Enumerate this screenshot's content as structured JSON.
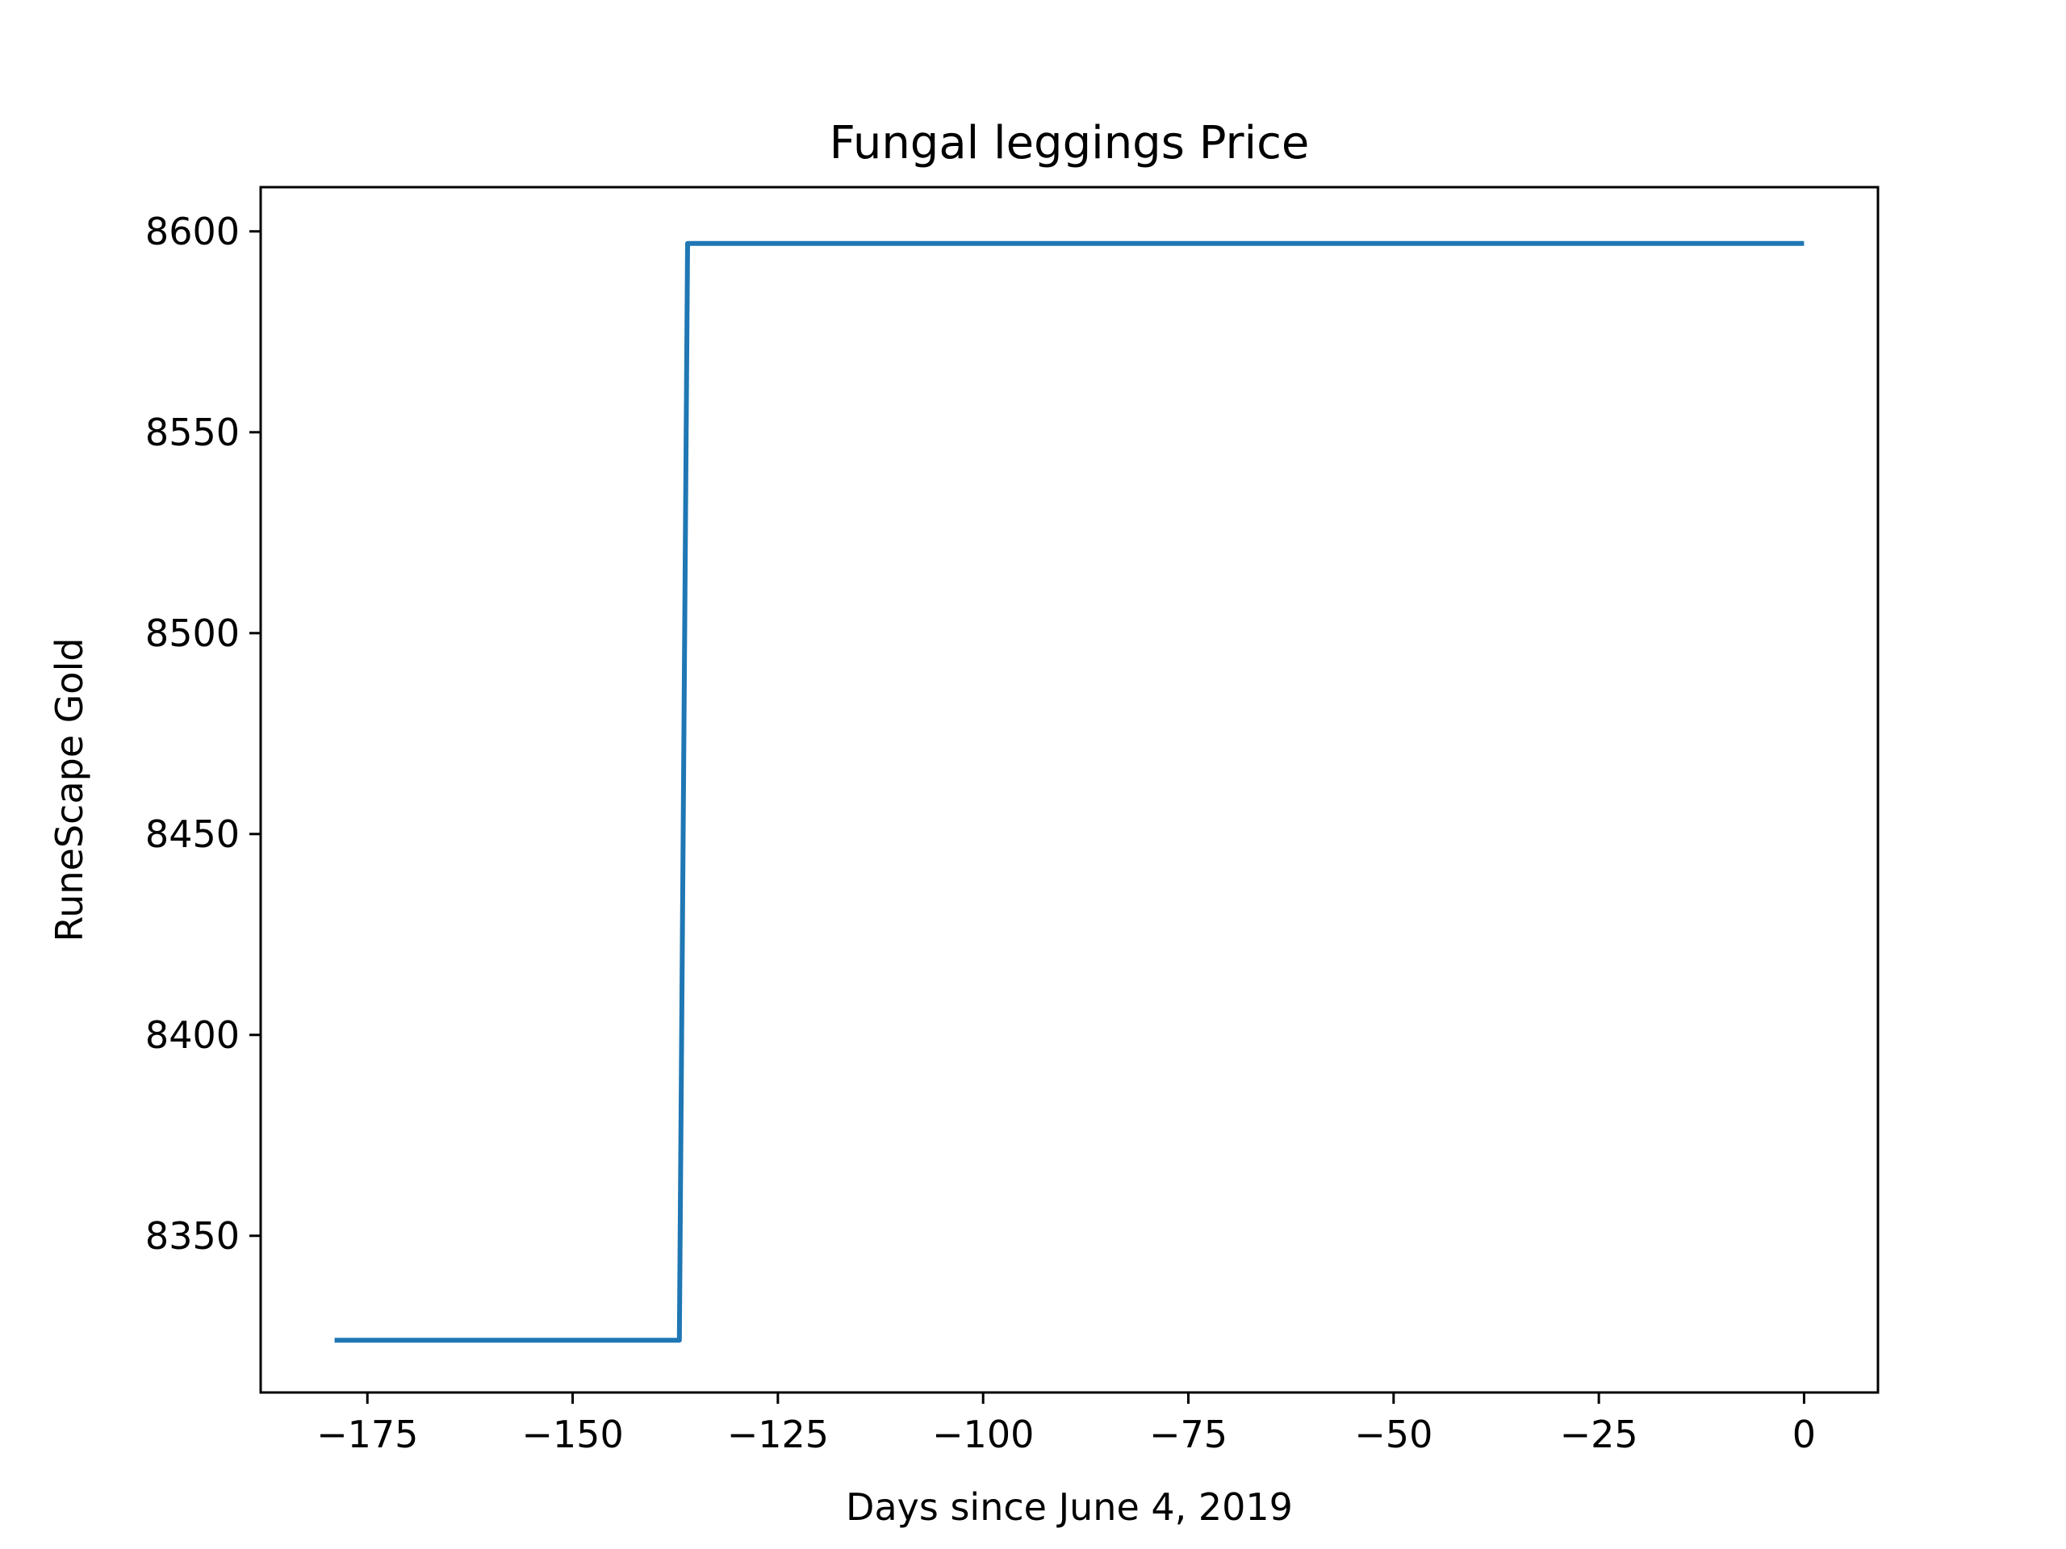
{
  "chart_data": {
    "type": "line",
    "title": "Fungal leggings Price",
    "xlabel": "Days since June 4, 2019",
    "ylabel": "RuneScape Gold",
    "xlim": [
      -188,
      9
    ],
    "ylim": [
      8311,
      8611
    ],
    "xticks": [
      -175,
      -150,
      -125,
      -100,
      -75,
      -50,
      -25,
      0
    ],
    "xtick_labels": [
      "−175",
      "−150",
      "−125",
      "−100",
      "−75",
      "−50",
      "−25",
      "0"
    ],
    "yticks": [
      8350,
      8400,
      8450,
      8500,
      8550,
      8600
    ],
    "ytick_labels": [
      "8350",
      "8400",
      "8450",
      "8500",
      "8550",
      "8600"
    ],
    "grid": false,
    "legend": "none",
    "series": [
      {
        "color": "#1f77b4",
        "x": [
          -179,
          -137,
          -136,
          0
        ],
        "y": [
          8324,
          8324,
          8597,
          8597
        ]
      }
    ]
  }
}
